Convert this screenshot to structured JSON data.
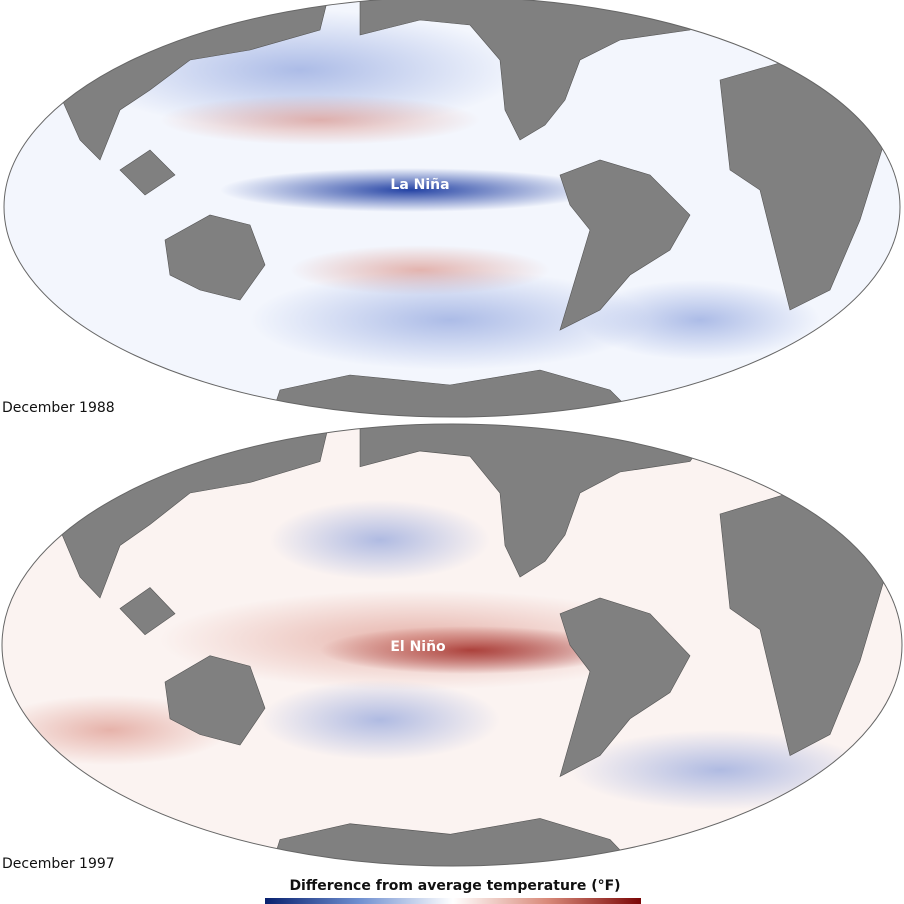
{
  "maps": [
    {
      "label": "La Niña",
      "caption": "December 1988"
    },
    {
      "label": "El Niño",
      "caption": "December 1997"
    }
  ],
  "legend": {
    "title": "Difference from average temperature (°F)"
  }
}
